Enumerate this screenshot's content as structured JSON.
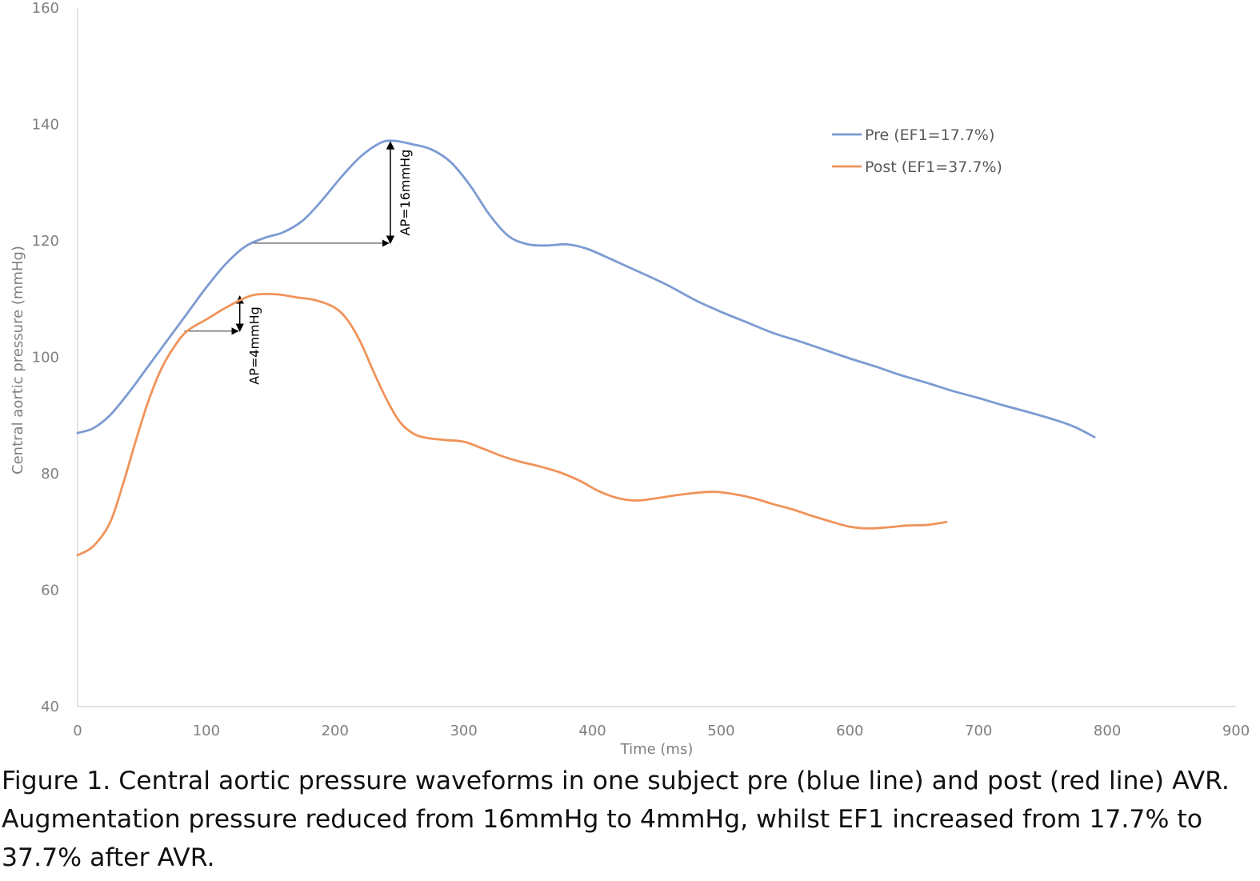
{
  "chart_data": {
    "type": "line",
    "xlabel": "Time (ms)",
    "ylabel": "Central aortic pressure (mmHg)",
    "xlim": [
      0,
      900
    ],
    "ylim": [
      40,
      160
    ],
    "xticks": [
      0,
      100,
      200,
      300,
      400,
      500,
      600,
      700,
      800,
      900
    ],
    "yticks": [
      40,
      60,
      80,
      100,
      120,
      140,
      160
    ],
    "grid": false,
    "legend_position": "top-right",
    "series": [
      {
        "name": "Pre (EF1=17.7%)",
        "color": "#7b9bd2",
        "points": [
          [
            0,
            87
          ],
          [
            12,
            87.8
          ],
          [
            25,
            90
          ],
          [
            40,
            94
          ],
          [
            55,
            98.5
          ],
          [
            70,
            103
          ],
          [
            85,
            107.5
          ],
          [
            100,
            112
          ],
          [
            115,
            116
          ],
          [
            130,
            119
          ],
          [
            145,
            120.5
          ],
          [
            160,
            121.5
          ],
          [
            175,
            123.5
          ],
          [
            190,
            127
          ],
          [
            205,
            131
          ],
          [
            220,
            134.5
          ],
          [
            235,
            136.8
          ],
          [
            245,
            137.2
          ],
          [
            260,
            136.6
          ],
          [
            275,
            135.7
          ],
          [
            290,
            133.5
          ],
          [
            305,
            129.5
          ],
          [
            320,
            124.5
          ],
          [
            335,
            120.8
          ],
          [
            350,
            119.4
          ],
          [
            365,
            119.2
          ],
          [
            380,
            119.4
          ],
          [
            395,
            118.7
          ],
          [
            410,
            117.3
          ],
          [
            425,
            115.8
          ],
          [
            440,
            114.3
          ],
          [
            460,
            112.2
          ],
          [
            480,
            109.8
          ],
          [
            500,
            107.8
          ],
          [
            520,
            106
          ],
          [
            540,
            104.2
          ],
          [
            560,
            102.8
          ],
          [
            580,
            101.3
          ],
          [
            600,
            99.8
          ],
          [
            620,
            98.4
          ],
          [
            640,
            96.9
          ],
          [
            660,
            95.6
          ],
          [
            680,
            94.2
          ],
          [
            700,
            93
          ],
          [
            720,
            91.7
          ],
          [
            740,
            90.5
          ],
          [
            760,
            89.2
          ],
          [
            775,
            88
          ],
          [
            790,
            86.3
          ]
        ]
      },
      {
        "name": "Post (EF1=37.7%)",
        "color": "#f0935a",
        "points": [
          [
            0,
            66
          ],
          [
            12,
            67.5
          ],
          [
            25,
            71.5
          ],
          [
            35,
            78
          ],
          [
            45,
            85.5
          ],
          [
            55,
            92.5
          ],
          [
            65,
            98
          ],
          [
            75,
            101.8
          ],
          [
            85,
            104.5
          ],
          [
            100,
            106.5
          ],
          [
            115,
            108.5
          ],
          [
            130,
            110.2
          ],
          [
            140,
            110.8
          ],
          [
            155,
            110.8
          ],
          [
            170,
            110.3
          ],
          [
            185,
            109.8
          ],
          [
            200,
            108.5
          ],
          [
            210,
            106.3
          ],
          [
            220,
            102.5
          ],
          [
            230,
            97.5
          ],
          [
            240,
            92.8
          ],
          [
            250,
            89
          ],
          [
            260,
            87
          ],
          [
            270,
            86.2
          ],
          [
            285,
            85.8
          ],
          [
            300,
            85.5
          ],
          [
            315,
            84.3
          ],
          [
            330,
            83
          ],
          [
            345,
            82
          ],
          [
            360,
            81.2
          ],
          [
            375,
            80.2
          ],
          [
            390,
            78.8
          ],
          [
            405,
            77
          ],
          [
            420,
            75.8
          ],
          [
            435,
            75.4
          ],
          [
            450,
            75.8
          ],
          [
            465,
            76.3
          ],
          [
            480,
            76.7
          ],
          [
            495,
            76.9
          ],
          [
            510,
            76.5
          ],
          [
            525,
            75.8
          ],
          [
            540,
            74.8
          ],
          [
            555,
            73.9
          ],
          [
            570,
            72.8
          ],
          [
            585,
            71.8
          ],
          [
            600,
            70.9
          ],
          [
            615,
            70.6
          ],
          [
            630,
            70.8
          ],
          [
            645,
            71.1
          ],
          [
            660,
            71.2
          ],
          [
            675,
            71.7
          ]
        ]
      }
    ],
    "annotations": [
      {
        "label": "AP=16mmHg",
        "x": 243,
        "y_top": 137,
        "y_bottom": 119.6,
        "ref_x_start": 135
      },
      {
        "label": "AP=4mmHg",
        "x": 126,
        "y_top": 110.5,
        "y_bottom": 104.5,
        "ref_x_start": 83
      }
    ]
  },
  "caption": "Figure 1. Central aortic pressure waveforms in one subject pre (blue line) and post (red line) AVR. Augmentation pressure reduced from 16mmHg to 4mmHg, whilst EF1 increased from 17.7% to 37.7% after AVR."
}
